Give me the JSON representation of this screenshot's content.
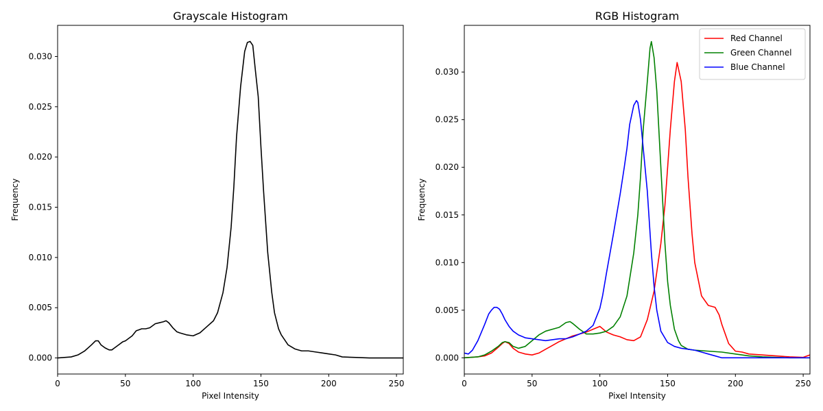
{
  "chart_data": [
    {
      "type": "line",
      "title": "Grayscale Histogram",
      "xlabel": "Pixel Intensity",
      "ylabel": "Frequency",
      "xlim": [
        0,
        255
      ],
      "ylim": [
        -0.0016,
        0.0331
      ],
      "xticks": [
        0,
        50,
        100,
        150,
        200,
        250
      ],
      "yticks": [
        0.0,
        0.005,
        0.01,
        0.015,
        0.02,
        0.025,
        0.03
      ],
      "ytick_labels": [
        "0.000",
        "0.005",
        "0.010",
        "0.015",
        "0.020",
        "0.025",
        "0.030"
      ],
      "grid": false,
      "series": [
        {
          "color": "#000000",
          "x": [
            0,
            10,
            15,
            20,
            25,
            28,
            30,
            32,
            35,
            38,
            40,
            42,
            45,
            48,
            50,
            55,
            58,
            60,
            62,
            65,
            68,
            70,
            72,
            75,
            78,
            80,
            82,
            85,
            88,
            90,
            95,
            100,
            105,
            110,
            115,
            118,
            120,
            122,
            125,
            128,
            130,
            132,
            135,
            138,
            140,
            142,
            144,
            146,
            148,
            150,
            152,
            155,
            158,
            160,
            163,
            165,
            170,
            175,
            180,
            185,
            190,
            195,
            200,
            205,
            210,
            220,
            230,
            240,
            255
          ],
          "y": [
            0.0,
            0.0001,
            0.0003,
            0.0007,
            0.0013,
            0.0017,
            0.0017,
            0.0013,
            0.001,
            0.0008,
            0.0008,
            0.001,
            0.0013,
            0.0016,
            0.0017,
            0.0022,
            0.0027,
            0.0028,
            0.0029,
            0.0029,
            0.003,
            0.0032,
            0.0034,
            0.0035,
            0.0036,
            0.0037,
            0.0035,
            0.003,
            0.0026,
            0.0025,
            0.0023,
            0.0022,
            0.0025,
            0.0031,
            0.0037,
            0.0045,
            0.0055,
            0.0065,
            0.009,
            0.013,
            0.017,
            0.022,
            0.027,
            0.0305,
            0.0314,
            0.0315,
            0.0311,
            0.0285,
            0.026,
            0.021,
            0.0165,
            0.0105,
            0.0065,
            0.0045,
            0.0029,
            0.0023,
            0.0013,
            0.0009,
            0.0007,
            0.0007,
            0.0006,
            0.0005,
            0.0004,
            0.0003,
            0.0001,
            5e-05,
            0.0,
            0.0,
            0.0
          ]
        }
      ]
    },
    {
      "type": "line",
      "title": "RGB Histogram",
      "xlabel": "Pixel Intensity",
      "ylabel": "Frequency",
      "xlim": [
        0,
        255
      ],
      "ylim": [
        -0.0017,
        0.0349
      ],
      "xticks": [
        0,
        50,
        100,
        150,
        200,
        250
      ],
      "yticks": [
        0.0,
        0.005,
        0.01,
        0.015,
        0.02,
        0.025,
        0.03
      ],
      "ytick_labels": [
        "0.000",
        "0.005",
        "0.010",
        "0.015",
        "0.020",
        "0.025",
        "0.030"
      ],
      "grid": false,
      "legend": "top-right",
      "series": [
        {
          "name": "Red Channel",
          "color": "#ff0000",
          "x": [
            0,
            10,
            15,
            20,
            25,
            28,
            30,
            33,
            36,
            40,
            45,
            50,
            55,
            60,
            65,
            70,
            75,
            80,
            85,
            90,
            95,
            100,
            105,
            110,
            115,
            120,
            125,
            130,
            135,
            140,
            145,
            148,
            150,
            152,
            155,
            157,
            160,
            163,
            165,
            168,
            170,
            175,
            180,
            185,
            188,
            190,
            195,
            200,
            205,
            210,
            220,
            230,
            240,
            250,
            255
          ],
          "y": [
            0.0,
            0.0001,
            0.0002,
            0.0005,
            0.0011,
            0.0015,
            0.0017,
            0.0015,
            0.001,
            0.0006,
            0.0004,
            0.0003,
            0.0005,
            0.0009,
            0.0013,
            0.0017,
            0.002,
            0.0023,
            0.0025,
            0.0027,
            0.003,
            0.0033,
            0.0027,
            0.0024,
            0.0022,
            0.0019,
            0.0018,
            0.0022,
            0.004,
            0.007,
            0.012,
            0.016,
            0.02,
            0.024,
            0.029,
            0.031,
            0.029,
            0.024,
            0.019,
            0.013,
            0.01,
            0.0065,
            0.0055,
            0.0053,
            0.0045,
            0.0035,
            0.0015,
            0.0007,
            0.0006,
            0.0004,
            0.0003,
            0.0002,
            0.0001,
            5e-05,
            0.0003
          ]
        },
        {
          "name": "Green Channel",
          "color": "#008000",
          "x": [
            0,
            10,
            15,
            20,
            25,
            28,
            30,
            33,
            36,
            40,
            45,
            50,
            55,
            60,
            65,
            70,
            75,
            78,
            80,
            85,
            90,
            95,
            100,
            105,
            110,
            115,
            120,
            125,
            128,
            130,
            132,
            135,
            137,
            138,
            140,
            142,
            145,
            148,
            150,
            152,
            155,
            158,
            160,
            165,
            170,
            180,
            190,
            200,
            210,
            220,
            230,
            240,
            255
          ],
          "y": [
            0.0,
            0.0001,
            0.0003,
            0.0007,
            0.0012,
            0.0016,
            0.0017,
            0.0016,
            0.0012,
            0.001,
            0.0012,
            0.0018,
            0.0024,
            0.0028,
            0.003,
            0.0032,
            0.0037,
            0.0038,
            0.0036,
            0.003,
            0.0025,
            0.0025,
            0.0026,
            0.0028,
            0.0033,
            0.0043,
            0.0065,
            0.011,
            0.015,
            0.019,
            0.024,
            0.029,
            0.0325,
            0.0332,
            0.0315,
            0.028,
            0.02,
            0.012,
            0.008,
            0.0055,
            0.003,
            0.0018,
            0.0013,
            0.0009,
            0.0008,
            0.0007,
            0.0006,
            0.0004,
            0.0002,
            0.0001,
            5e-05,
            0.0,
            0.0
          ]
        },
        {
          "name": "Blue Channel",
          "color": "#0000ff",
          "x": [
            0,
            3,
            6,
            10,
            15,
            18,
            20,
            22,
            24,
            26,
            28,
            30,
            33,
            36,
            40,
            45,
            50,
            55,
            60,
            65,
            70,
            75,
            80,
            85,
            90,
            95,
            100,
            102,
            105,
            110,
            115,
            118,
            120,
            122,
            125,
            127,
            128,
            130,
            132,
            135,
            138,
            140,
            142,
            145,
            150,
            155,
            160,
            165,
            170,
            175,
            180,
            185,
            190,
            200,
            220,
            255
          ],
          "y": [
            0.0005,
            0.0004,
            0.0008,
            0.0018,
            0.0035,
            0.0046,
            0.005,
            0.0053,
            0.0053,
            0.0051,
            0.0046,
            0.004,
            0.0033,
            0.0028,
            0.0024,
            0.0021,
            0.002,
            0.0019,
            0.0018,
            0.0019,
            0.002,
            0.002,
            0.0022,
            0.0025,
            0.0028,
            0.0034,
            0.0052,
            0.0065,
            0.009,
            0.013,
            0.0172,
            0.02,
            0.022,
            0.0245,
            0.0265,
            0.027,
            0.0268,
            0.025,
            0.022,
            0.0175,
            0.011,
            0.0075,
            0.005,
            0.0028,
            0.0016,
            0.0012,
            0.001,
            0.0009,
            0.0008,
            0.0006,
            0.0004,
            0.0002,
            0.0,
            0.0,
            0.0,
            0.0
          ]
        }
      ]
    }
  ]
}
